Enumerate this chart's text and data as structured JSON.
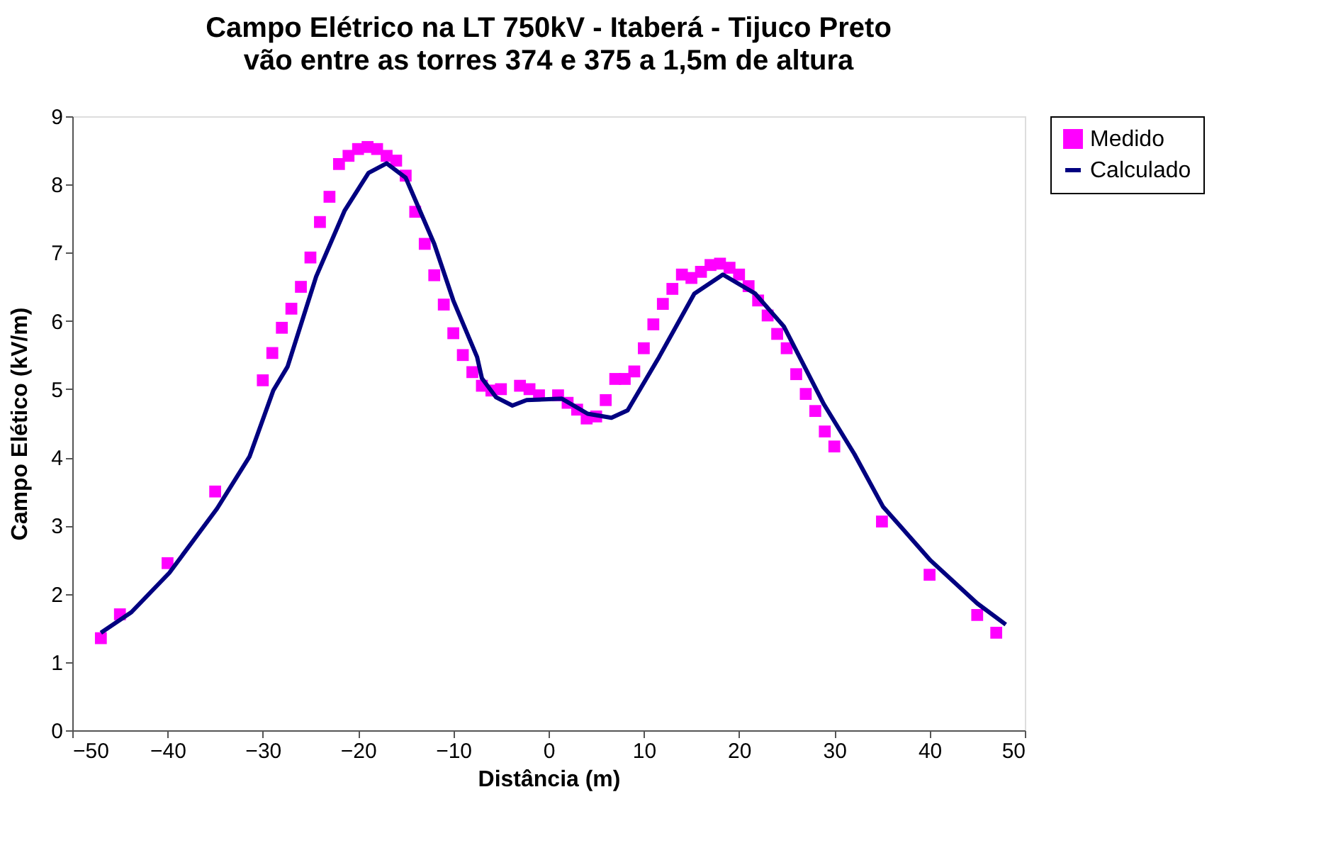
{
  "chart_data": {
    "type": "scatter",
    "title": "Campo Elétrico na LT 750kV - Itaberá - Tijuco Preto",
    "subtitle": "vão entre as torres 374 e 375 a 1,5m de altura",
    "xlabel": "Distância (m)",
    "ylabel": "Campo Elético (kV/m)",
    "xlim": [
      -50,
      50
    ],
    "xticks": [
      -50,
      -40,
      -30,
      -20,
      -10,
      0,
      10,
      20,
      30,
      40,
      50
    ],
    "ylim": [
      0,
      9
    ],
    "yticks": [
      0,
      1,
      2,
      3,
      4,
      5,
      6,
      7,
      8,
      9
    ],
    "grid": false,
    "legend": "right",
    "series": [
      {
        "name": "Medido",
        "marker": "square",
        "color": "#ff00ff",
        "x": [
          -47,
          -45,
          -40,
          -35,
          -30,
          -29,
          -28,
          -27,
          -26,
          -25,
          -24,
          -23,
          -22,
          -21,
          -20,
          -19,
          -18,
          -17,
          -16,
          -15,
          -14,
          -13,
          -12,
          -11,
          -10,
          -9,
          -8,
          -7,
          -6,
          -5,
          -3,
          -2,
          -1,
          1,
          2,
          3,
          4,
          5,
          6,
          7,
          8,
          9,
          10,
          11,
          12,
          13,
          14,
          15,
          16,
          17,
          18,
          19,
          20,
          21,
          22,
          23,
          24,
          25,
          26,
          27,
          28,
          29,
          30,
          35,
          40,
          45,
          47
        ],
        "values": [
          1.35,
          1.7,
          2.45,
          3.5,
          5.13,
          5.53,
          5.9,
          6.18,
          6.5,
          6.93,
          7.45,
          7.82,
          8.3,
          8.42,
          8.52,
          8.55,
          8.52,
          8.42,
          8.35,
          8.13,
          7.6,
          7.13,
          6.67,
          6.24,
          5.82,
          5.5,
          5.25,
          5.05,
          4.98,
          5.0,
          5.05,
          5.0,
          4.91,
          4.91,
          4.8,
          4.7,
          4.57,
          4.6,
          4.84,
          5.15,
          5.15,
          5.26,
          5.6,
          5.95,
          6.25,
          6.47,
          6.68,
          6.63,
          6.72,
          6.82,
          6.84,
          6.78,
          6.68,
          6.51,
          6.3,
          6.08,
          5.81,
          5.6,
          5.22,
          4.93,
          4.68,
          4.38,
          4.16,
          3.06,
          2.28,
          1.69,
          1.43
        ]
      },
      {
        "name": "Calculado",
        "type": "line",
        "marker": "none",
        "line_style": "solid",
        "color": "#000080",
        "x": [
          -47,
          -43.8,
          -39.8,
          -34.8,
          -31.4,
          -28.9,
          -27.4,
          -24.4,
          -21.4,
          -18.9,
          -17,
          -15,
          -12,
          -10,
          -7.5,
          -7,
          -5.5,
          -3.8,
          -2.3,
          1.4,
          4.1,
          6.6,
          8.3,
          11.6,
          15.3,
          18.3,
          21.7,
          24.7,
          28.9,
          32.1,
          35.1,
          40.1,
          45,
          48
        ],
        "values": [
          1.43,
          1.73,
          2.31,
          3.25,
          4.01,
          4.98,
          5.33,
          6.65,
          7.62,
          8.17,
          8.31,
          8.1,
          7.13,
          6.3,
          5.47,
          5.16,
          4.88,
          4.76,
          4.84,
          4.86,
          4.64,
          4.58,
          4.69,
          5.47,
          6.4,
          6.68,
          6.4,
          5.92,
          4.78,
          4.05,
          3.28,
          2.49,
          1.86,
          1.55
        ]
      }
    ]
  }
}
